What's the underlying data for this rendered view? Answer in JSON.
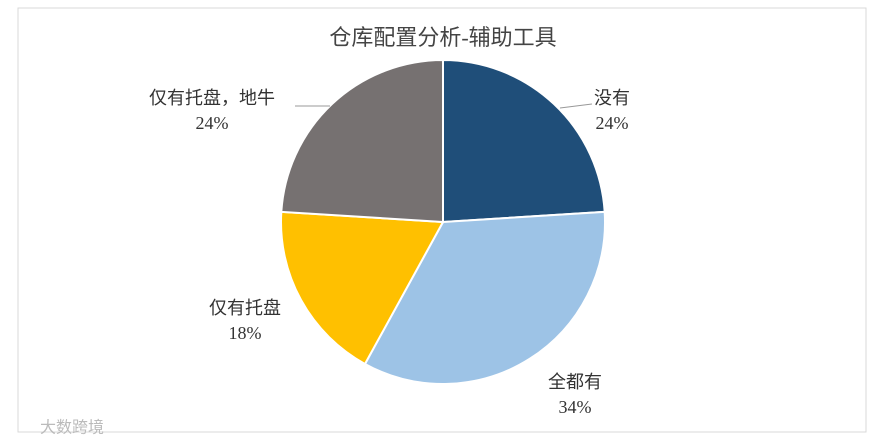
{
  "chart_data": {
    "type": "pie",
    "title": "仓库配置分析-辅助工具",
    "categories": [
      "没有",
      "全都有",
      "仅有托盘",
      "仅有托盘，地牛"
    ],
    "values": [
      24,
      34,
      18,
      24
    ],
    "value_labels": [
      "24%",
      "34%",
      "18%",
      "24%"
    ],
    "colors": [
      "#1f4e79",
      "#9dc3e6",
      "#ffc000",
      "#767171"
    ],
    "watermark": "大数跨境"
  }
}
